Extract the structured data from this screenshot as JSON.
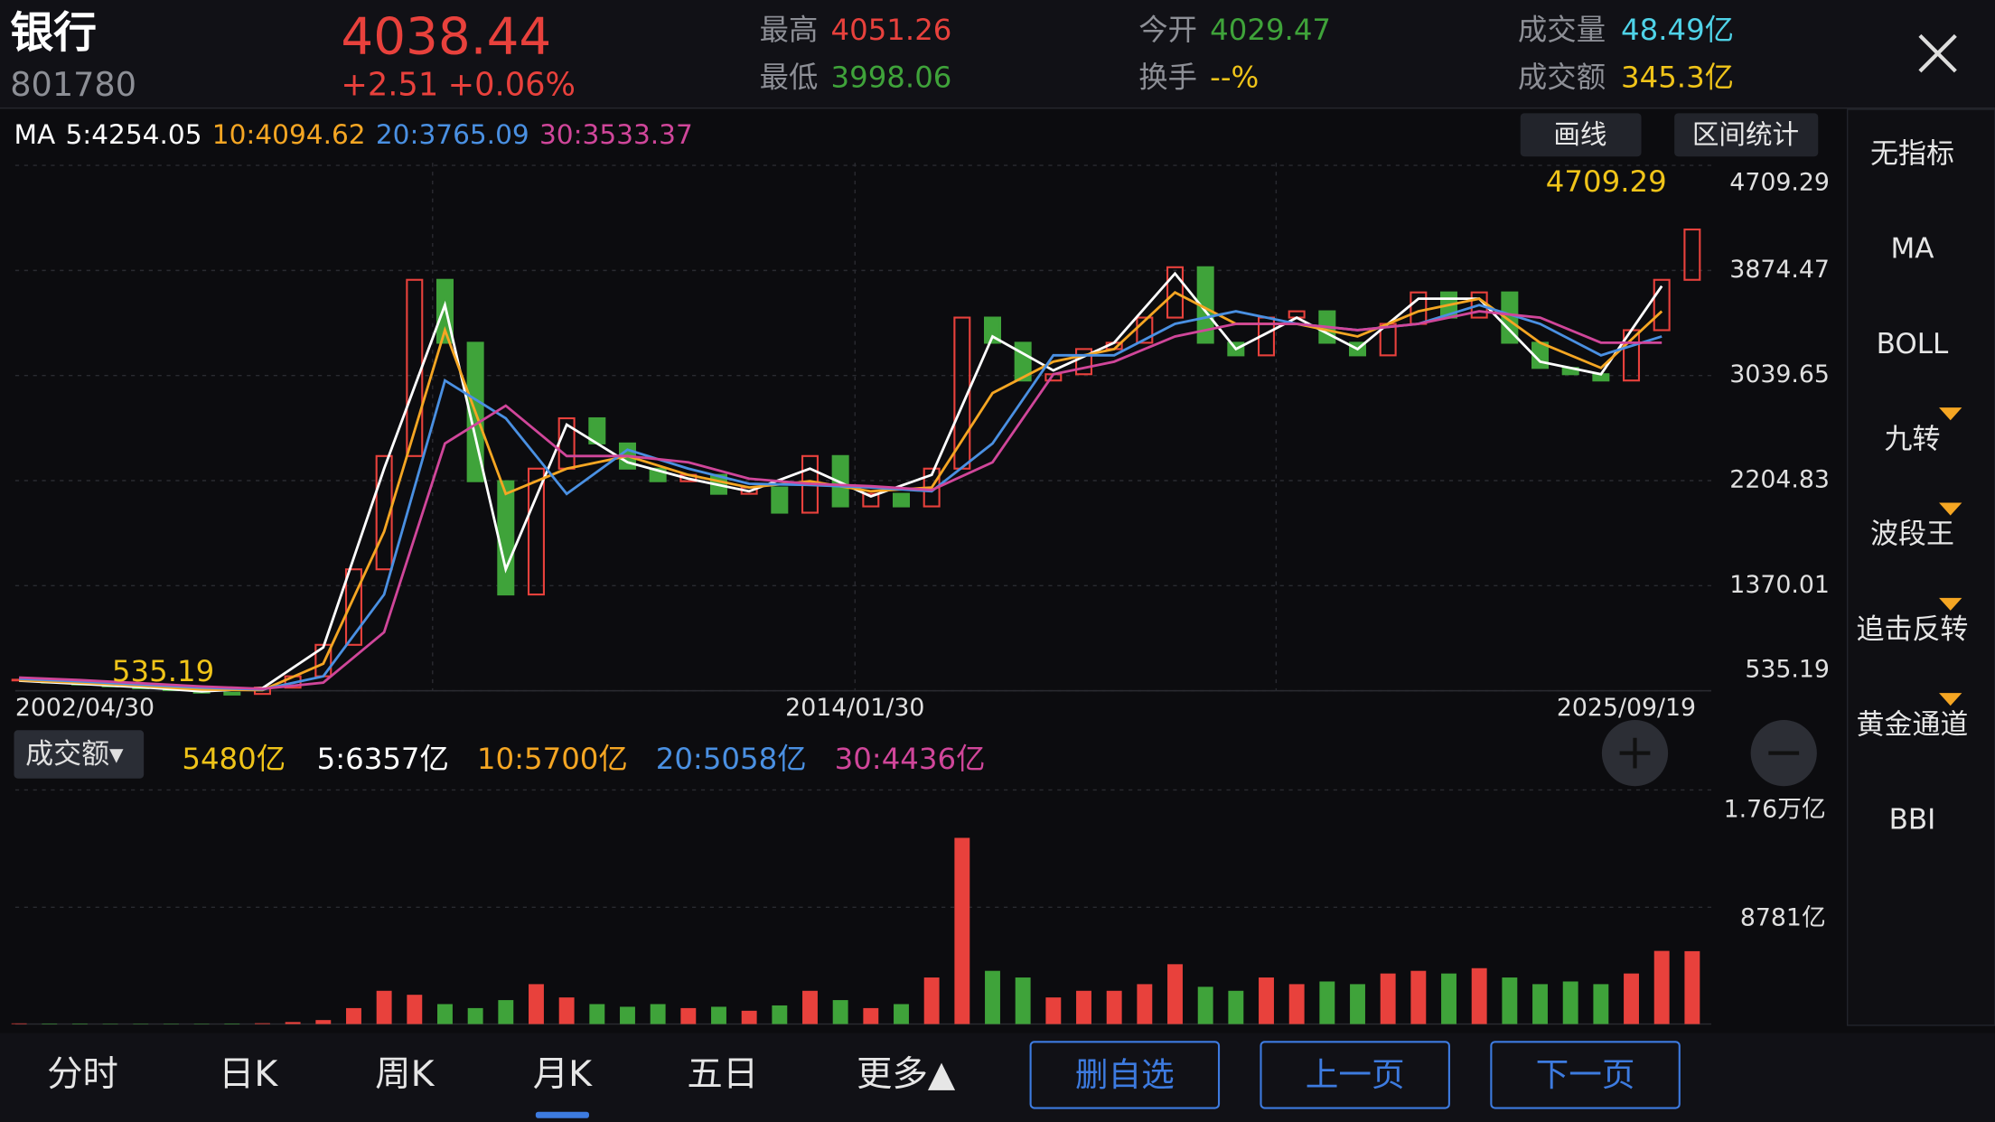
{
  "header": {
    "name": "银行",
    "code": "801780",
    "price": "4038.44",
    "change": "+2.51",
    "change_pct": "+0.06%",
    "stats": [
      {
        "label": "最高",
        "value": "4051.26"
      },
      {
        "label": "最低",
        "value": "3998.06"
      },
      {
        "label": "今开",
        "value": "4029.47"
      },
      {
        "label": "换手",
        "value": "--%"
      },
      {
        "label": "成交量",
        "value": "48.49亿"
      },
      {
        "label": "成交额",
        "value": "345.3亿"
      }
    ]
  },
  "toolbar": {
    "draw": "画线",
    "range_stats": "区间统计"
  },
  "indicators": [
    "无指标",
    "MA",
    "BOLL",
    "九转",
    "波段王",
    "追击反转",
    "黄金通道",
    "BBI"
  ],
  "tabs": [
    "分时",
    "日K",
    "周K",
    "月K",
    "五日",
    "更多▲"
  ],
  "buttons": [
    "删自选",
    "上一页",
    "下一页"
  ],
  "chart_data": [
    {
      "type": "candlestick",
      "up_color": "#e8413c",
      "down_color": "#3fa33a",
      "values": [
        620,
        600,
        590,
        570,
        560,
        540,
        520,
        510,
        560,
        650,
        900,
        1500,
        2400,
        3800,
        3300,
        2200,
        1300,
        2300,
        2700,
        2500,
        2300,
        2200,
        2250,
        2100,
        2150,
        1950,
        2400,
        2000,
        2100,
        2000,
        2300,
        3500,
        3300,
        3000,
        3050,
        3250,
        3300,
        3500,
        3900,
        3300,
        3200,
        3500,
        3550,
        3300,
        3200,
        3450,
        3700,
        3500,
        3700,
        3300,
        3100,
        3050,
        3000,
        3400,
        3800,
        4200
      ],
      "ylim": [
        535.19,
        4709.29
      ],
      "yticks": [
        4709.29,
        3874.47,
        3039.65,
        2204.83,
        1370.01,
        535.19
      ],
      "max_label": "4709.29",
      "min_label": "535.19",
      "x_labels": [
        "2002/04/30",
        "2014/01/30",
        "2025/09/19"
      ],
      "ma_label": "MA",
      "series": [
        {
          "name": "5:4254.05",
          "color": "#ffffff",
          "values": [
            615,
            590,
            565,
            530,
            555,
            880,
            2300,
            3600,
            1500,
            2650,
            2350,
            2220,
            2120,
            2300,
            2080,
            2250,
            3350,
            3080,
            3300,
            3850,
            3250,
            3500,
            3250,
            3650,
            3650,
            3150,
            3050,
            3750
          ]
        },
        {
          "name": "10:4094.62",
          "color": "#f5a623",
          "values": [
            620,
            600,
            575,
            545,
            540,
            750,
            1800,
            3400,
            2100,
            2300,
            2400,
            2250,
            2150,
            2200,
            2120,
            2150,
            2900,
            3150,
            3250,
            3700,
            3450,
            3450,
            3350,
            3550,
            3650,
            3300,
            3100,
            3550
          ]
        },
        {
          "name": "20:3765.09",
          "color": "#4a90e2",
          "values": [
            630,
            610,
            585,
            560,
            545,
            650,
            1300,
            3000,
            2700,
            2100,
            2450,
            2300,
            2180,
            2170,
            2150,
            2120,
            2500,
            3200,
            3200,
            3450,
            3550,
            3450,
            3400,
            3450,
            3600,
            3450,
            3200,
            3350
          ]
        },
        {
          "name": "30:3533.37",
          "color": "#d0469a",
          "values": [
            640,
            620,
            595,
            570,
            550,
            600,
            1000,
            2500,
            2800,
            2400,
            2400,
            2350,
            2220,
            2180,
            2160,
            2130,
            2350,
            3050,
            3150,
            3350,
            3450,
            3450,
            3400,
            3450,
            3550,
            3500,
            3300,
            3300
          ]
        }
      ]
    },
    {
      "type": "bar",
      "selector": "成交额▾",
      "current": "5480亿",
      "values": [
        50,
        40,
        40,
        30,
        30,
        30,
        30,
        40,
        60,
        150,
        300,
        1200,
        2500,
        2200,
        1500,
        1200,
        1800,
        3000,
        2000,
        1500,
        1300,
        1500,
        1200,
        1300,
        1000,
        1400,
        2500,
        1800,
        1200,
        1500,
        3500,
        14000,
        4000,
        3500,
        2000,
        2500,
        2500,
        3000,
        4500,
        2800,
        2500,
        3500,
        3000,
        3200,
        3000,
        3800,
        4000,
        3800,
        4200,
        3500,
        3000,
        3200,
        3000,
        3800,
        5500,
        5480
      ],
      "ylim": [
        0,
        17600
      ],
      "yticks": [
        {
          "value": 17600,
          "label": "1.76万亿"
        },
        {
          "value": 8781,
          "label": "8781亿"
        }
      ],
      "series": [
        {
          "name": "5:6357亿",
          "color": "#ffffff"
        },
        {
          "name": "10:5700亿",
          "color": "#f5a623"
        },
        {
          "name": "20:5058亿",
          "color": "#4a90e2"
        },
        {
          "name": "30:4436亿",
          "color": "#d0469a"
        }
      ]
    }
  ]
}
